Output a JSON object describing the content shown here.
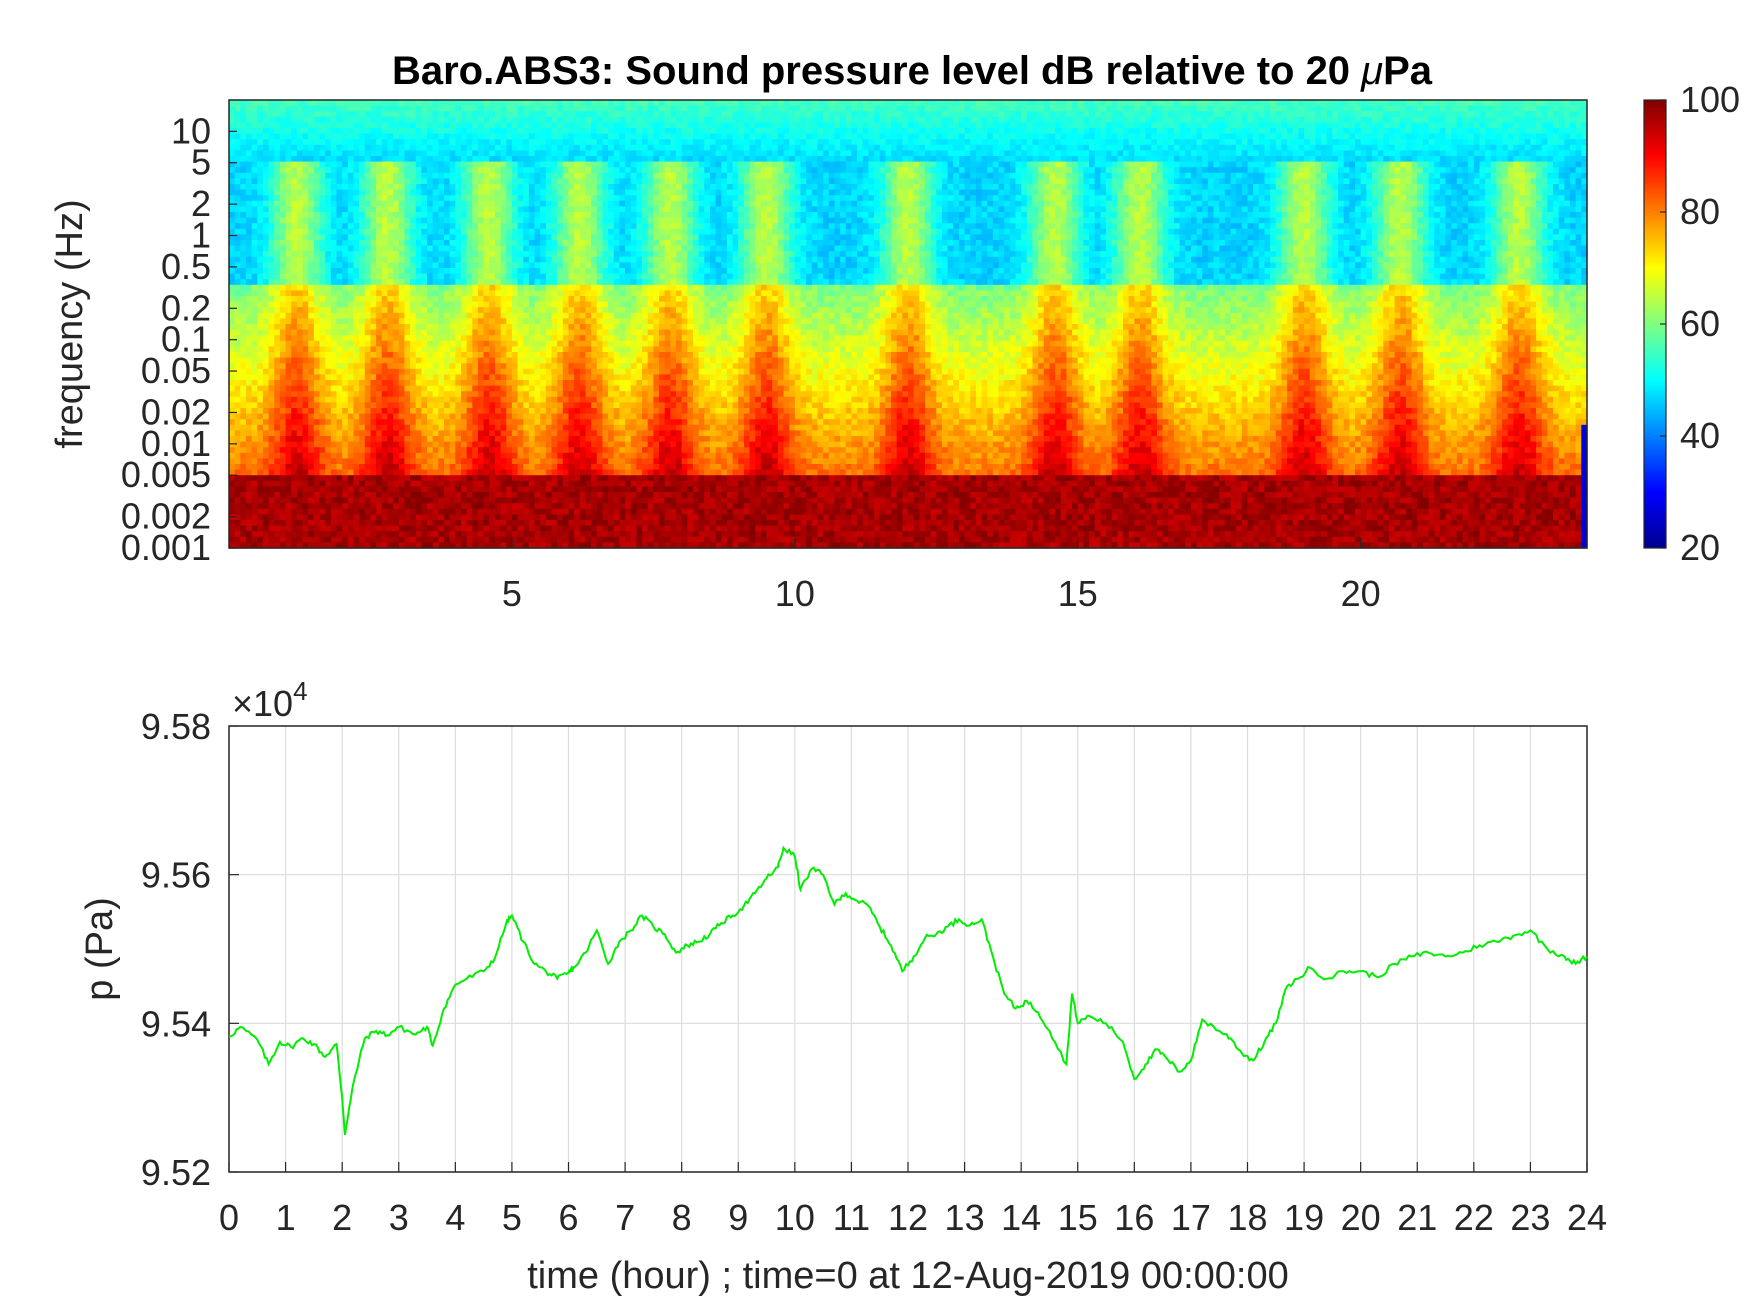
{
  "chart_data": [
    {
      "type": "heatmap",
      "title": "Baro.ABS3: Sound pressure level dB relative to 20 μPa",
      "title_parts": [
        "Baro.ABS3: Sound pressure level dB relative to 20 ",
        "μ",
        "Pa"
      ],
      "xlabel": "",
      "ylabel": "frequency (Hz)",
      "x_range": [
        0,
        24
      ],
      "x_ticks": [
        "5",
        "10",
        "15",
        "20"
      ],
      "y_scale": "log",
      "y_range": [
        0.001,
        20
      ],
      "y_ticks": [
        "0.001",
        "0.002",
        "0.005",
        "0.01",
        "0.02",
        "0.05",
        "0.1",
        "0.2",
        "0.5",
        "1",
        "2",
        "5",
        "10"
      ],
      "colorbar": {
        "colormap": "jet",
        "range": [
          20,
          100
        ],
        "ticks": [
          "20",
          "40",
          "60",
          "80",
          "100"
        ]
      },
      "description_values": {
        "low_band_0.001_0.005Hz_dB": 95,
        "mid_band_0.01_0.1Hz_dB": 68,
        "band_0.5_2Hz_dB": 43,
        "top_band_5_20Hz_dB": 52
      }
    },
    {
      "type": "line",
      "title": "",
      "xlabel": "time (hour) ; time=0 at 12-Aug-2019 00:00:00",
      "ylabel": "p (Pa)",
      "x_range": [
        0,
        24
      ],
      "x_ticks": [
        "0",
        "1",
        "2",
        "3",
        "4",
        "5",
        "6",
        "7",
        "8",
        "9",
        "10",
        "11",
        "12",
        "13",
        "14",
        "15",
        "16",
        "17",
        "18",
        "19",
        "20",
        "21",
        "22",
        "23",
        "24"
      ],
      "y_range": [
        95200,
        95800
      ],
      "y_ticks": [
        "9.52",
        "9.54",
        "9.56",
        "9.58"
      ],
      "y_exponent_label": "×10",
      "y_exponent_power": "4",
      "grid": true,
      "line_color": "#00ee00",
      "series": [
        {
          "x": [
            0,
            0.2,
            0.5,
            0.7,
            0.9,
            1.1,
            1.3,
            1.5,
            1.7,
            1.9,
            2.0,
            2.05,
            2.2,
            2.4,
            2.6,
            2.8,
            3.0,
            3.3,
            3.5,
            3.6,
            3.8,
            4.0,
            4.2,
            4.5,
            4.7,
            4.9,
            5.0,
            5.2,
            5.4,
            5.6,
            5.8,
            6.0,
            6.1,
            6.3,
            6.5,
            6.7,
            6.9,
            7.1,
            7.3,
            7.5,
            7.7,
            7.9,
            8.1,
            8.3,
            8.5,
            8.7,
            8.9,
            9.1,
            9.3,
            9.5,
            9.7,
            9.8,
            10.0,
            10.1,
            10.3,
            10.5,
            10.7,
            10.9,
            11.1,
            11.3,
            11.5,
            11.7,
            11.9,
            12.1,
            12.3,
            12.5,
            12.7,
            12.9,
            13.1,
            13.3,
            13.5,
            13.7,
            13.9,
            14.1,
            14.3,
            14.5,
            14.8,
            14.9,
            15.0,
            15.2,
            15.5,
            15.8,
            16.0,
            16.2,
            16.4,
            16.6,
            16.8,
            17.0,
            17.2,
            17.5,
            17.7,
            17.9,
            18.1,
            18.3,
            18.5,
            18.7,
            18.9,
            19.1,
            19.4,
            19.7,
            20.0,
            20.3,
            20.6,
            20.9,
            21.2,
            21.5,
            21.8,
            22.1,
            22.4,
            22.7,
            23.0,
            23.3,
            23.6,
            23.8,
            24.0
          ],
          "y": [
            95382,
            95395,
            95378,
            95345,
            95375,
            95368,
            95380,
            95372,
            95355,
            95372,
            95300,
            95250,
            95320,
            95380,
            95390,
            95384,
            95395,
            95385,
            95395,
            95370,
            95420,
            95452,
            95460,
            95470,
            95488,
            95535,
            95545,
            95510,
            95480,
            95470,
            95460,
            95468,
            95475,
            95495,
            95525,
            95480,
            95510,
            95525,
            95545,
            95530,
            95520,
            95495,
            95505,
            95510,
            95520,
            95535,
            95545,
            95558,
            95575,
            95595,
            95610,
            95636,
            95625,
            95580,
            95608,
            95600,
            95560,
            95575,
            95565,
            95558,
            95530,
            95505,
            95470,
            95490,
            95515,
            95520,
            95530,
            95540,
            95532,
            95540,
            95490,
            95440,
            95420,
            95430,
            95415,
            95390,
            95345,
            95440,
            95400,
            95410,
            95400,
            95375,
            95325,
            95345,
            95365,
            95350,
            95335,
            95350,
            95405,
            95390,
            95380,
            95360,
            95350,
            95375,
            95400,
            95450,
            95460,
            95475,
            95460,
            95470,
            95470,
            95462,
            95480,
            95490,
            95495,
            95490,
            95495,
            95505,
            95510,
            95518,
            95525,
            95500,
            95490,
            95480,
            95490
          ]
        }
      ]
    }
  ]
}
